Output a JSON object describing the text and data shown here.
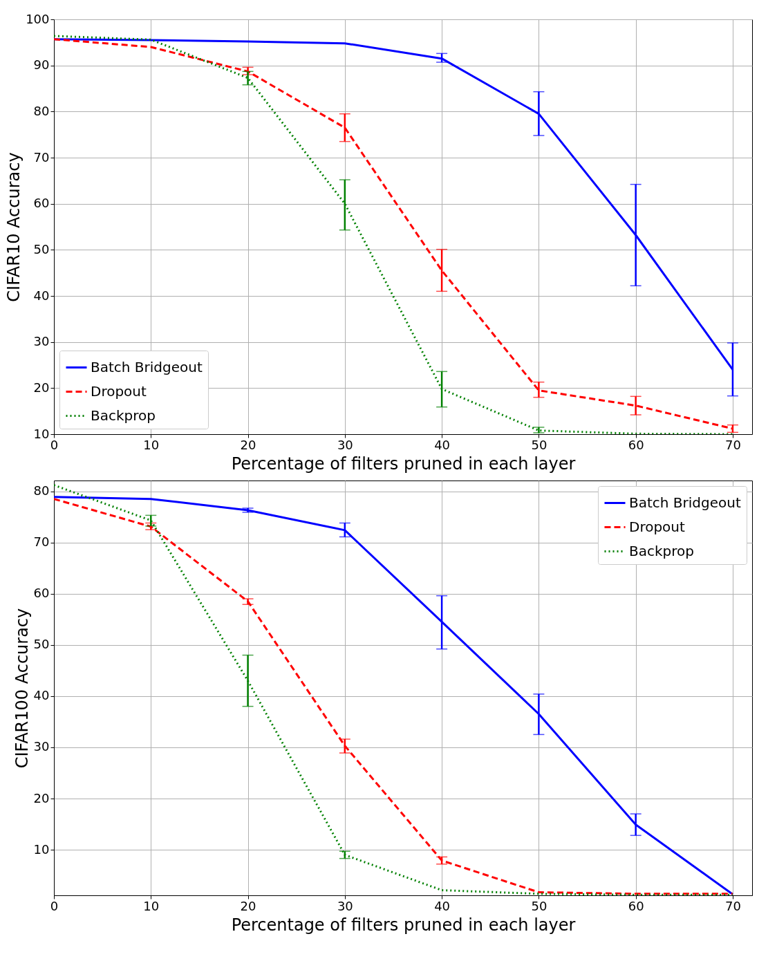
{
  "chart_data": [
    {
      "type": "line",
      "xlabel": "Percentage of filters pruned in each layer",
      "ylabel": "CIFAR10 Accuracy",
      "x": [
        0,
        10,
        20,
        30,
        40,
        50,
        60,
        70
      ],
      "xlim": [
        0,
        72
      ],
      "xticks": [
        0,
        10,
        20,
        30,
        40,
        50,
        60,
        70
      ],
      "ylim": [
        10,
        100
      ],
      "yticks": [
        10,
        20,
        30,
        40,
        50,
        60,
        70,
        80,
        90,
        100
      ],
      "grid": true,
      "legend": "bottom left",
      "series": [
        {
          "name": "Batch Bridgeout",
          "color": "#0000ff",
          "line_style": "solid",
          "values": [
            95.7,
            95.5,
            95.2,
            94.8,
            91.5,
            79.5,
            53.2,
            24
          ],
          "errors": [
            null,
            null,
            null,
            null,
            [
              90.7,
              92.6
            ],
            [
              74.8,
              84.3
            ],
            [
              42.2,
              64.2
            ],
            [
              18.3,
              29.8
            ]
          ]
        },
        {
          "name": "Dropout",
          "color": "#ff0000",
          "line_style": "dashed",
          "values": [
            95.7,
            94,
            88.7,
            76.5,
            45.5,
            19.5,
            16.2,
            11.2
          ],
          "errors": [
            null,
            null,
            [
              88,
              89.6
            ],
            [
              73.5,
              79.5
            ],
            [
              41,
              50.1
            ],
            [
              18,
              21.3
            ],
            [
              14.2,
              18.2
            ],
            [
              10.4,
              12
            ]
          ]
        },
        {
          "name": "Backprop",
          "color": "#008000",
          "line_style": "dotted",
          "values": [
            96.4,
            95.6,
            87.3,
            60,
            19.8,
            10.8,
            10.1,
            10
          ],
          "errors": [
            null,
            null,
            [
              85.8,
              88.7
            ],
            [
              54.3,
              65.2
            ],
            [
              15.9,
              23.6
            ],
            [
              10.3,
              11.5
            ],
            null,
            null
          ]
        }
      ]
    },
    {
      "type": "line",
      "xlabel": "Percentage of filters pruned in each layer",
      "ylabel": "CIFAR100 Accuracy",
      "x": [
        0,
        10,
        20,
        30,
        40,
        50,
        60,
        70
      ],
      "xlim": [
        0,
        72
      ],
      "xticks": [
        0,
        10,
        20,
        30,
        40,
        50,
        60,
        70
      ],
      "ylim": [
        1.1,
        82.1
      ],
      "yticks": [
        10,
        20,
        30,
        40,
        50,
        60,
        70,
        80
      ],
      "grid": true,
      "legend": "top right",
      "series": [
        {
          "name": "Batch Bridgeout",
          "color": "#0000ff",
          "line_style": "solid",
          "values": [
            78.9,
            78.5,
            76.3,
            72.4,
            54.5,
            36.5,
            14.9,
            1.3
          ],
          "errors": [
            null,
            null,
            [
              75.9,
              76.7
            ],
            [
              71.1,
              73.8
            ],
            [
              49.2,
              59.6
            ],
            [
              32.5,
              40.4
            ],
            [
              12.8,
              17
            ],
            null
          ]
        },
        {
          "name": "Dropout",
          "color": "#ff0000",
          "line_style": "dashed",
          "values": [
            78.5,
            73.1,
            58.5,
            30.3,
            7.9,
            1.7,
            1.4,
            1.4
          ],
          "errors": [
            null,
            [
              72.5,
              73.8
            ],
            [
              57.9,
              59
            ],
            [
              28.9,
              31.6
            ],
            [
              7.2,
              8.6
            ],
            null,
            null,
            null
          ]
        },
        {
          "name": "Backprop",
          "color": "#008000",
          "line_style": "dotted",
          "values": [
            81.2,
            74.3,
            43,
            9,
            2.1,
            1.4,
            1.2,
            1.2
          ],
          "errors": [
            null,
            [
              73.2,
              75.3
            ],
            [
              38,
              48
            ],
            [
              8.3,
              9.7
            ],
            null,
            null,
            null,
            null
          ]
        }
      ]
    }
  ]
}
